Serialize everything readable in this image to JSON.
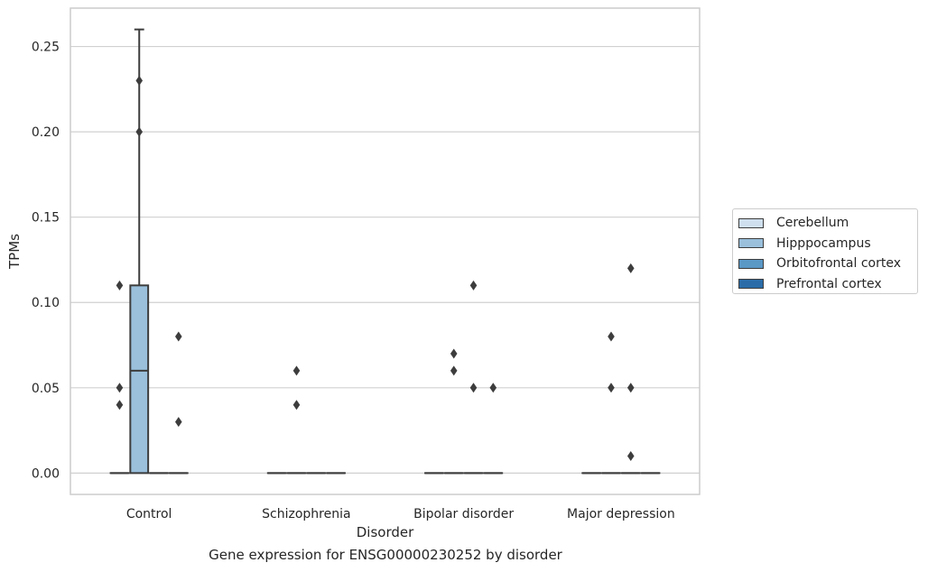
{
  "chart_data": {
    "type": "box",
    "xlabel": "Disorder",
    "ylabel": "TPMs",
    "caption": "Gene expression for ENSG00000230252 by disorder",
    "categories": [
      "Control",
      "Schizophrenia",
      "Bipolar disorder",
      "Major depression"
    ],
    "ylim": [
      -0.0125,
      0.2725
    ],
    "yticks": [
      0.0,
      0.05,
      0.1,
      0.15,
      0.2,
      0.25
    ],
    "ytick_labels": [
      "0.00",
      "0.05",
      "0.10",
      "0.15",
      "0.20",
      "0.25"
    ],
    "grid": "horizontal",
    "legend_position": "right",
    "series": [
      {
        "name": "Cerebellum",
        "color": "#cfdfee",
        "boxes": [
          {
            "category": "Control",
            "q1": 0,
            "median": 0,
            "q3": 0,
            "whisker_low": 0,
            "whisker_high": 0,
            "outliers": [
              0.11,
              0.05,
              0.04
            ]
          },
          {
            "category": "Schizophrenia",
            "q1": 0,
            "median": 0,
            "q3": 0,
            "whisker_low": 0,
            "whisker_high": 0,
            "outliers": []
          },
          {
            "category": "Bipolar disorder",
            "q1": 0,
            "median": 0,
            "q3": 0,
            "whisker_low": 0,
            "whisker_high": 0,
            "outliers": []
          },
          {
            "category": "Major depression",
            "q1": 0,
            "median": 0,
            "q3": 0,
            "whisker_low": 0,
            "whisker_high": 0,
            "outliers": []
          }
        ]
      },
      {
        "name": "Hipppocampus",
        "color": "#9ac0dc",
        "boxes": [
          {
            "category": "Control",
            "q1": 0,
            "median": 0.06,
            "q3": 0.11,
            "whisker_low": 0,
            "whisker_high": 0.26,
            "outliers": [
              0.23,
              0.2
            ]
          },
          {
            "category": "Schizophrenia",
            "q1": 0,
            "median": 0,
            "q3": 0,
            "whisker_low": 0,
            "whisker_high": 0,
            "outliers": [
              0.06,
              0.04
            ]
          },
          {
            "category": "Bipolar disorder",
            "q1": 0,
            "median": 0,
            "q3": 0,
            "whisker_low": 0,
            "whisker_high": 0,
            "outliers": [
              0.07,
              0.06
            ]
          },
          {
            "category": "Major depression",
            "q1": 0,
            "median": 0,
            "q3": 0,
            "whisker_low": 0,
            "whisker_high": 0,
            "outliers": [
              0.08,
              0.05
            ]
          }
        ]
      },
      {
        "name": "Orbitofrontal cortex",
        "color": "#5a98c6",
        "boxes": [
          {
            "category": "Control",
            "q1": 0,
            "median": 0,
            "q3": 0,
            "whisker_low": 0,
            "whisker_high": 0,
            "outliers": []
          },
          {
            "category": "Schizophrenia",
            "q1": 0,
            "median": 0,
            "q3": 0,
            "whisker_low": 0,
            "whisker_high": 0,
            "outliers": []
          },
          {
            "category": "Bipolar disorder",
            "q1": 0,
            "median": 0,
            "q3": 0,
            "whisker_low": 0,
            "whisker_high": 0,
            "outliers": [
              0.11,
              0.05
            ]
          },
          {
            "category": "Major depression",
            "q1": 0,
            "median": 0,
            "q3": 0,
            "whisker_low": 0,
            "whisker_high": 0,
            "outliers": [
              0.12,
              0.05,
              0.01
            ]
          }
        ]
      },
      {
        "name": "Prefrontal cortex",
        "color": "#2b6ca8",
        "boxes": [
          {
            "category": "Control",
            "q1": 0,
            "median": 0,
            "q3": 0,
            "whisker_low": 0,
            "whisker_high": 0,
            "outliers": [
              0.08,
              0.03
            ]
          },
          {
            "category": "Schizophrenia",
            "q1": 0,
            "median": 0,
            "q3": 0,
            "whisker_low": 0,
            "whisker_high": 0,
            "outliers": []
          },
          {
            "category": "Bipolar disorder",
            "q1": 0,
            "median": 0,
            "q3": 0,
            "whisker_low": 0,
            "whisker_high": 0,
            "outliers": [
              0.05
            ]
          },
          {
            "category": "Major depression",
            "q1": 0,
            "median": 0,
            "q3": 0,
            "whisker_low": 0,
            "whisker_high": 0,
            "outliers": []
          }
        ]
      }
    ],
    "colors": {
      "grid": "#d0d0d0",
      "frame": "#cccccc",
      "line": "#3d3d3d",
      "outlier": "#3d3d3d"
    }
  }
}
